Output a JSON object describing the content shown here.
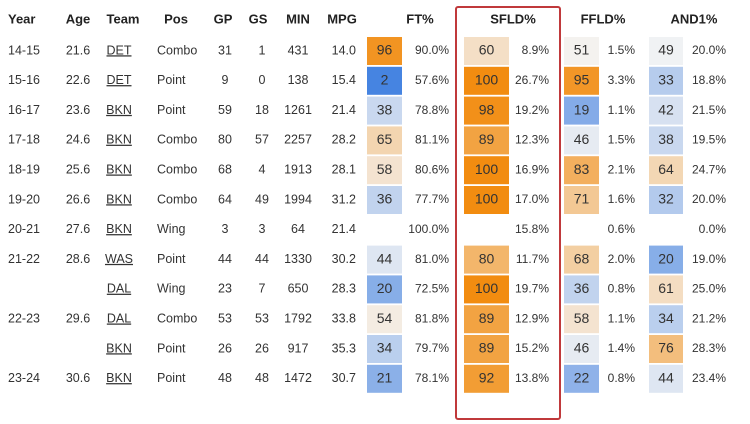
{
  "headers": {
    "year": "Year",
    "age": "Age",
    "team": "Team",
    "pos": "Pos",
    "gp": "GP",
    "gs": "GS",
    "min": "MIN",
    "mpg": "MPG",
    "ft": "FT%",
    "sfld": "SFLD%",
    "ffld": "FFLD%",
    "and1": "AND1%"
  },
  "rows": [
    {
      "year": "14-15",
      "age": "21.6",
      "team": "DET",
      "pos": "Combo",
      "gp": "31",
      "gs": "1",
      "min": "431",
      "mpg": "14.0",
      "ft_pctile": 96,
      "ft": "90.0%",
      "sfld_pctile": 60,
      "sfld": "8.9%",
      "ffld_pctile": 51,
      "ffld": "1.5%",
      "and1_pctile": 49,
      "and1": "20.0%"
    },
    {
      "year": "15-16",
      "age": "22.6",
      "team": "DET",
      "pos": "Point",
      "gp": "9",
      "gs": "0",
      "min": "138",
      "mpg": "15.4",
      "ft_pctile": 2,
      "ft": "57.6%",
      "sfld_pctile": 100,
      "sfld": "26.7%",
      "ffld_pctile": 95,
      "ffld": "3.3%",
      "and1_pctile": 33,
      "and1": "18.8%"
    },
    {
      "year": "16-17",
      "age": "23.6",
      "team": "BKN",
      "pos": "Point",
      "gp": "59",
      "gs": "18",
      "min": "1261",
      "mpg": "21.4",
      "ft_pctile": 38,
      "ft": "78.8%",
      "sfld_pctile": 98,
      "sfld": "19.2%",
      "ffld_pctile": 19,
      "ffld": "1.1%",
      "and1_pctile": 42,
      "and1": "21.5%"
    },
    {
      "year": "17-18",
      "age": "24.6",
      "team": "BKN",
      "pos": "Combo",
      "gp": "80",
      "gs": "57",
      "min": "2257",
      "mpg": "28.2",
      "ft_pctile": 65,
      "ft": "81.1%",
      "sfld_pctile": 89,
      "sfld": "12.3%",
      "ffld_pctile": 46,
      "ffld": "1.5%",
      "and1_pctile": 38,
      "and1": "19.5%"
    },
    {
      "year": "18-19",
      "age": "25.6",
      "team": "BKN",
      "pos": "Combo",
      "gp": "68",
      "gs": "4",
      "min": "1913",
      "mpg": "28.1",
      "ft_pctile": 58,
      "ft": "80.6%",
      "sfld_pctile": 100,
      "sfld": "16.9%",
      "ffld_pctile": 83,
      "ffld": "2.1%",
      "and1_pctile": 64,
      "and1": "24.7%"
    },
    {
      "year": "19-20",
      "age": "26.6",
      "team": "BKN",
      "pos": "Combo",
      "gp": "64",
      "gs": "49",
      "min": "1994",
      "mpg": "31.2",
      "ft_pctile": 36,
      "ft": "77.7%",
      "sfld_pctile": 100,
      "sfld": "17.0%",
      "ffld_pctile": 71,
      "ffld": "1.6%",
      "and1_pctile": 32,
      "and1": "20.0%"
    },
    {
      "year": "20-21",
      "age": "27.6",
      "team": "BKN",
      "pos": "Wing",
      "gp": "3",
      "gs": "3",
      "min": "64",
      "mpg": "21.4",
      "ft_pctile": null,
      "ft": "100.0%",
      "sfld_pctile": null,
      "sfld": "15.8%",
      "ffld_pctile": null,
      "ffld": "0.6%",
      "and1_pctile": null,
      "and1": "0.0%"
    },
    {
      "year": "21-22",
      "age": "28.6",
      "team": "WAS",
      "pos": "Point",
      "gp": "44",
      "gs": "44",
      "min": "1330",
      "mpg": "30.2",
      "ft_pctile": 44,
      "ft": "81.0%",
      "sfld_pctile": 80,
      "sfld": "11.7%",
      "ffld_pctile": 68,
      "ffld": "2.0%",
      "and1_pctile": 20,
      "and1": "19.0%"
    },
    {
      "year": "",
      "age": "",
      "team": "DAL",
      "pos": "Wing",
      "gp": "23",
      "gs": "7",
      "min": "650",
      "mpg": "28.3",
      "ft_pctile": 20,
      "ft": "72.5%",
      "sfld_pctile": 100,
      "sfld": "19.7%",
      "ffld_pctile": 36,
      "ffld": "0.8%",
      "and1_pctile": 61,
      "and1": "25.0%"
    },
    {
      "year": "22-23",
      "age": "29.6",
      "team": "DAL",
      "pos": "Combo",
      "gp": "53",
      "gs": "53",
      "min": "1792",
      "mpg": "33.8",
      "ft_pctile": 54,
      "ft": "81.8%",
      "sfld_pctile": 89,
      "sfld": "12.9%",
      "ffld_pctile": 58,
      "ffld": "1.1%",
      "and1_pctile": 34,
      "and1": "21.2%"
    },
    {
      "year": "",
      "age": "",
      "team": "BKN",
      "pos": "Point",
      "gp": "26",
      "gs": "26",
      "min": "917",
      "mpg": "35.3",
      "ft_pctile": 34,
      "ft": "79.7%",
      "sfld_pctile": 89,
      "sfld": "15.2%",
      "ffld_pctile": 46,
      "ffld": "1.4%",
      "and1_pctile": 76,
      "and1": "28.3%"
    },
    {
      "year": "23-24",
      "age": "30.6",
      "team": "BKN",
      "pos": "Point",
      "gp": "48",
      "gs": "48",
      "min": "1472",
      "mpg": "30.7",
      "ft_pctile": 21,
      "ft": "78.1%",
      "sfld_pctile": 92,
      "sfld": "13.8%",
      "ffld_pctile": 22,
      "ffld": "0.8%",
      "and1_pctile": 44,
      "and1": "23.4%"
    }
  ],
  "colors": {
    "highlight_border": "#c0393b",
    "scale_low": "#3f7fe0",
    "scale_mid": "#f4f4f4",
    "scale_high": "#f28c10",
    "team_link": "#333333"
  }
}
